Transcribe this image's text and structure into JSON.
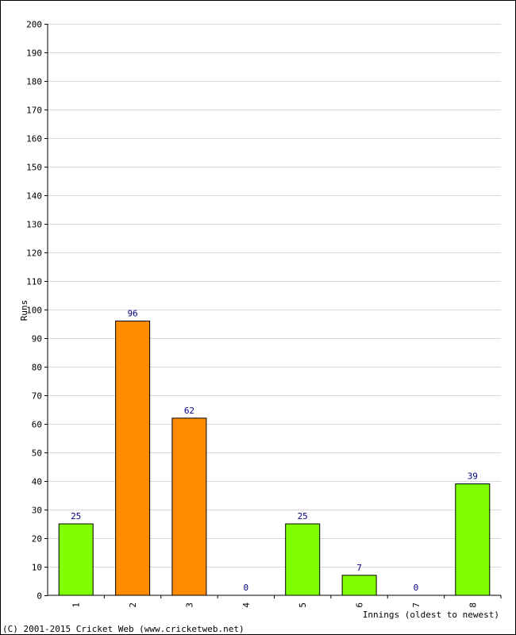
{
  "chart_data": {
    "type": "bar",
    "categories": [
      "1",
      "2",
      "3",
      "4",
      "5",
      "6",
      "7",
      "8"
    ],
    "values": [
      25,
      96,
      62,
      0,
      25,
      7,
      0,
      39
    ],
    "bar_colors": [
      "#80ff00",
      "#ff8c00",
      "#ff8c00",
      "#80ff00",
      "#80ff00",
      "#80ff00",
      "#80ff00",
      "#80ff00"
    ],
    "ylabel": "Runs",
    "xlabel": "Innings (oldest to newest)",
    "ylim": [
      0,
      200
    ],
    "ytick_step": 10,
    "grid": true
  },
  "footer": {
    "copyright": "(C) 2001-2015 Cricket Web (www.cricketweb.net)"
  },
  "colors": {
    "grid": "#d8d8d8",
    "axis": "#000000",
    "label": "#00007f"
  }
}
